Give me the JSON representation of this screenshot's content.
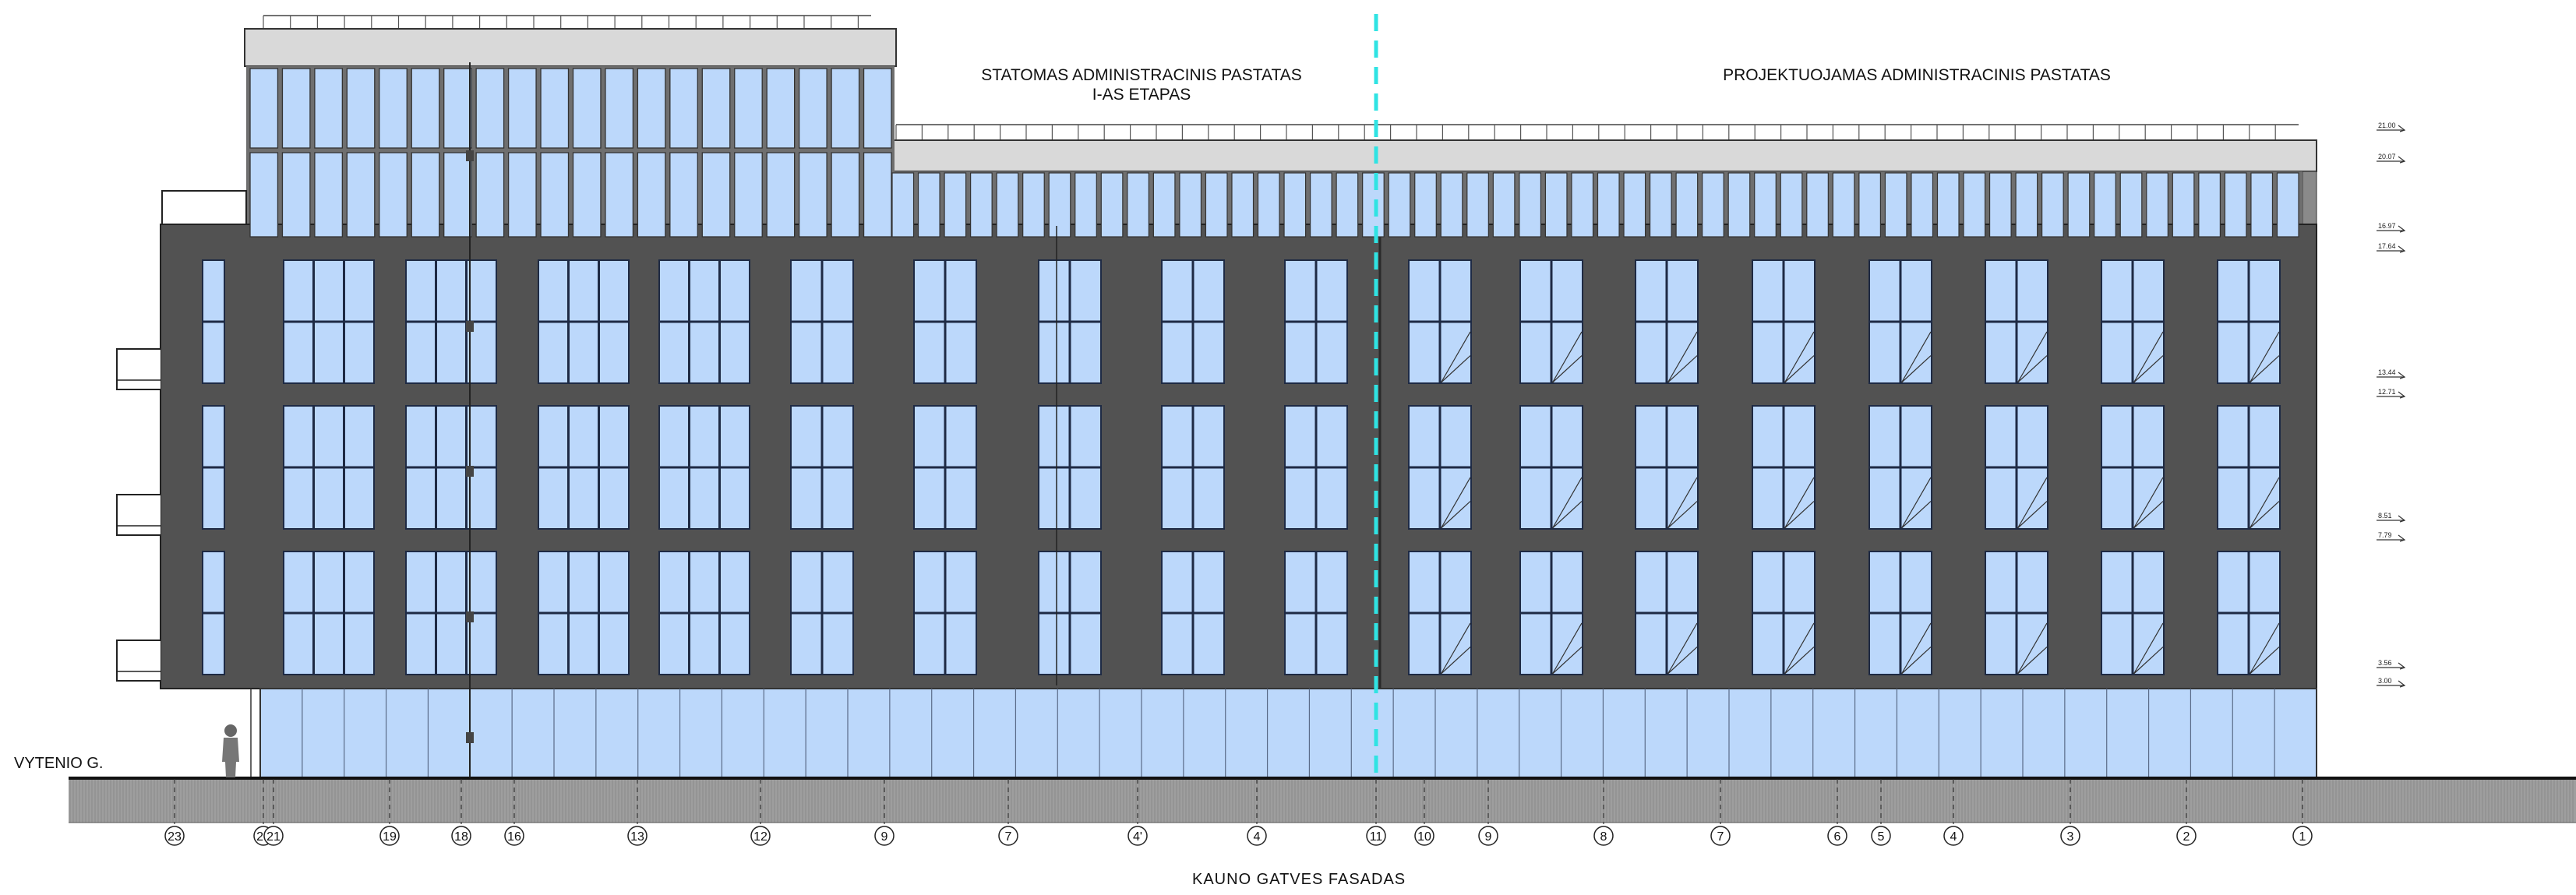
{
  "drawing": {
    "title": "KAUNO GATVES FASADAS",
    "street_label": "VYTENIO G.",
    "phase_left": {
      "line1": "STATOMAS ADMINISTRACINIS PASTATAS",
      "line2": "I-AS ETAPAS"
    },
    "phase_right": "PROJEKTUOJAMAS ADMINISTRACINIS PASTATAS"
  },
  "axes": {
    "left_building": [
      "23",
      "20",
      "21",
      "19",
      "18",
      "16",
      "13",
      "12",
      "9",
      "7",
      "4'",
      "4",
      "11"
    ],
    "right_building": [
      "10",
      "9",
      "8",
      "7",
      "6",
      "5",
      "4",
      "3",
      "2",
      "1"
    ]
  },
  "levels": [
    "21.00",
    "20.07",
    "16.97",
    "17.64",
    "13.44",
    "12.71",
    "8.51",
    "7.79",
    "3.56",
    "3.00"
  ],
  "colors": {
    "glass": "#bcd8fb",
    "facade": "#525252",
    "roof_band": "#d9d9d9",
    "ground": "#9e9e9e",
    "section_line": "#2fe3e3"
  }
}
